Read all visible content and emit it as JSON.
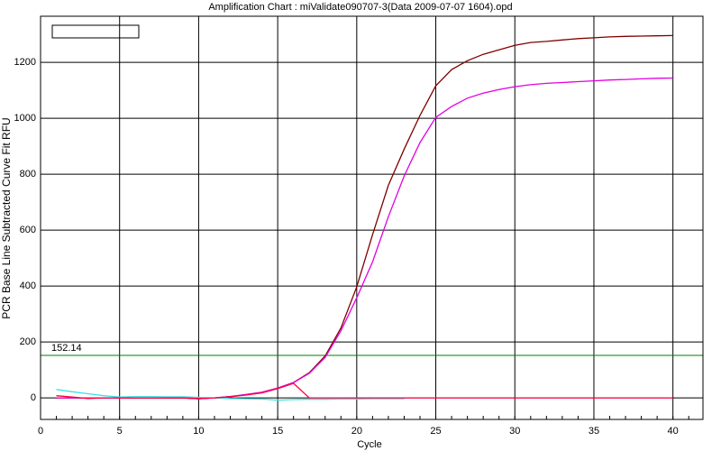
{
  "chart_data": {
    "type": "line",
    "title": "Amplification Chart : miValidate090707-3(Data 2009-07-07 1604).opd",
    "xlabel": "Cycle",
    "ylabel": "PCR Base Line Subtracted Curve Fit RFU",
    "x": [
      1,
      2,
      3,
      4,
      5,
      6,
      7,
      8,
      9,
      10,
      11,
      12,
      13,
      14,
      15,
      16,
      17,
      18,
      19,
      20,
      21,
      22,
      23,
      24,
      25,
      26,
      27,
      28,
      29,
      30,
      31,
      32,
      33,
      34,
      35,
      36,
      37,
      38,
      39,
      40
    ],
    "series": [
      {
        "color": "#800000",
        "values": [
          0,
          0,
          0,
          0,
          0,
          0,
          0,
          0,
          0,
          -3,
          0,
          5,
          12,
          20,
          35,
          55,
          90,
          150,
          250,
          397,
          584,
          760,
          890,
          1010,
          1116,
          1174,
          1206,
          1229,
          1245,
          1261,
          1271,
          1275,
          1280,
          1285,
          1288,
          1291,
          1293,
          1294,
          1295,
          1296
        ]
      },
      {
        "color": "#e000e0",
        "values": [
          0,
          0,
          0,
          0,
          0,
          0,
          0,
          0,
          0,
          -3,
          0,
          5,
          12,
          20,
          35,
          55,
          88,
          145,
          240,
          358,
          487,
          648,
          794,
          913,
          1003,
          1042,
          1072,
          1090,
          1103,
          1113,
          1120,
          1125,
          1128,
          1131,
          1134,
          1137,
          1139,
          1141,
          1143,
          1144
        ]
      },
      {
        "color": "#40e0e0",
        "values": [
          30,
          22,
          15,
          8,
          3,
          5,
          5,
          4,
          4,
          2,
          0,
          -2,
          -3,
          -4,
          -8,
          -6,
          -5,
          -5,
          -4,
          -4,
          -3,
          -3,
          -3,
          null,
          null,
          null,
          null,
          null,
          null,
          null,
          null,
          null,
          null,
          null,
          null,
          null,
          null,
          null,
          null,
          null
        ]
      },
      {
        "color": "#ff0040",
        "values": [
          8,
          3,
          -2,
          0,
          0,
          -1,
          -1,
          -1,
          -1,
          -2,
          0,
          4,
          10,
          18,
          33,
          52,
          0,
          0,
          0,
          0,
          0,
          0,
          0,
          0,
          0,
          0,
          0,
          0,
          0,
          0,
          0,
          0,
          0,
          0,
          0,
          0,
          0,
          0,
          0,
          0
        ]
      }
    ],
    "threshold": {
      "value": 152.14,
      "label": "152.14",
      "color": "#008000"
    },
    "xlim": [
      0,
      41.9
    ],
    "ylim": [
      -77,
      1365
    ],
    "xticks": [
      0,
      5,
      10,
      15,
      20,
      25,
      30,
      35,
      40
    ],
    "yticks": [
      0,
      200,
      400,
      600,
      800,
      1000,
      1200
    ],
    "grid": true
  }
}
